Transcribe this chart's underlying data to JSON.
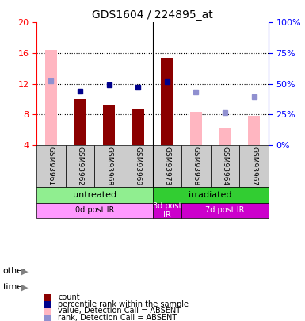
{
  "title": "GDS1604 / 224895_at",
  "samples": [
    "GSM93961",
    "GSM93962",
    "GSM93968",
    "GSM93969",
    "GSM93973",
    "GSM93958",
    "GSM93964",
    "GSM93967"
  ],
  "bar_values": [
    null,
    10.0,
    9.2,
    8.7,
    15.4,
    null,
    null,
    null
  ],
  "bar_absent_values": [
    16.4,
    null,
    null,
    null,
    null,
    8.3,
    6.2,
    7.8
  ],
  "rank_present": [
    null,
    11.0,
    11.8,
    11.5,
    12.3,
    null,
    null,
    null
  ],
  "rank_absent": [
    12.4,
    null,
    null,
    null,
    null,
    10.9,
    8.2,
    10.3
  ],
  "ylim": [
    4,
    20
  ],
  "y2lim": [
    0,
    100
  ],
  "yticks": [
    4,
    8,
    12,
    16,
    20
  ],
  "y2ticks": [
    0,
    25,
    50,
    75,
    100
  ],
  "bar_color": "#8B0000",
  "bar_absent_color": "#FFB6C1",
  "rank_present_color": "#00008B",
  "rank_absent_color": "#9090D0",
  "group_colors": {
    "untreated": "#90EE90",
    "irradiated": "#32CD32"
  },
  "time_colors": {
    "0d post IR": "#FF80FF",
    "3d post IR": "#CC00CC",
    "7d post IR": "#CC00CC"
  },
  "group_labels": [
    {
      "label": "untreated",
      "start": 0,
      "end": 4,
      "color": "#90EE90"
    },
    {
      "label": "irradiated",
      "start": 4,
      "end": 8,
      "color": "#32CD32"
    }
  ],
  "time_labels": [
    {
      "label": "0d post IR",
      "start": 0,
      "end": 4,
      "color": "#FF99FF"
    },
    {
      "label": "3d post\nIR",
      "start": 4,
      "end": 5,
      "color": "#CC00CC"
    },
    {
      "label": "7d post IR",
      "start": 5,
      "end": 8,
      "color": "#CC00CC"
    }
  ],
  "legend_items": [
    {
      "label": "count",
      "color": "#8B0000",
      "marker": "s"
    },
    {
      "label": "percentile rank within the sample",
      "color": "#00008B",
      "marker": "s"
    },
    {
      "label": "value, Detection Call = ABSENT",
      "color": "#FFB6C1",
      "marker": "s"
    },
    {
      "label": "rank, Detection Call = ABSENT",
      "color": "#9090D0",
      "marker": "s"
    }
  ]
}
